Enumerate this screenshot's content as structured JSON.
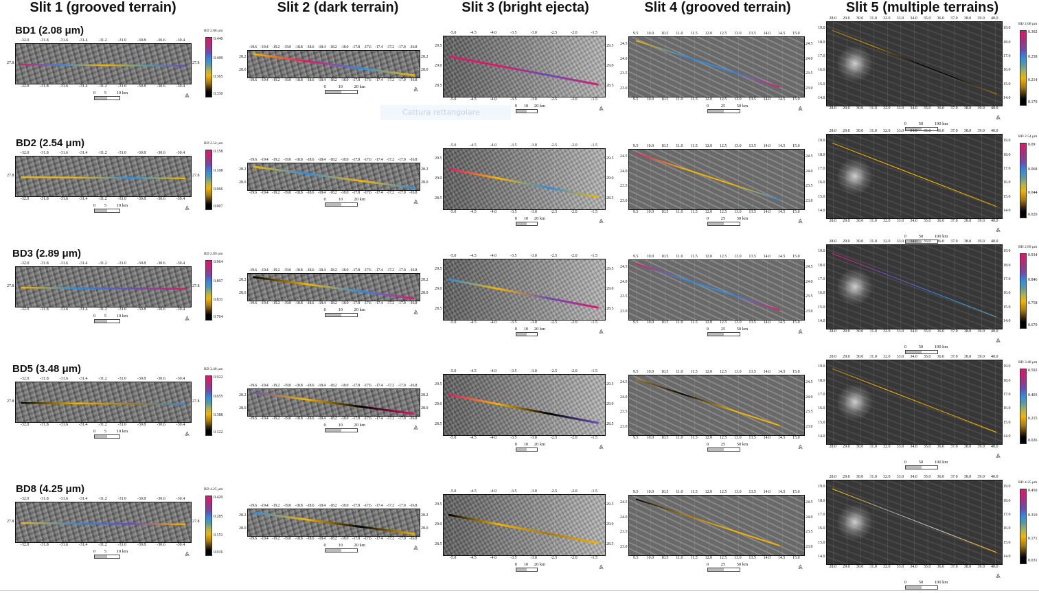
{
  "columns": [
    {
      "title": "Slit 1 (grooved terrain)",
      "x_ticks": [
        "-32.0",
        "-31.8",
        "-31.6",
        "-31.4",
        "-31.2",
        "-31.0",
        "-30.8",
        "-30.6",
        "-30.4"
      ],
      "y_ticks": [
        "27.8"
      ],
      "scale": [
        "0",
        "5",
        "10 km"
      ]
    },
    {
      "title": "Slit 2 (dark terrain)",
      "x_ticks": [
        "-19.6",
        "-19.4",
        "-19.2",
        "-19.0",
        "-18.8",
        "-18.6",
        "-18.4",
        "-18.2",
        "-18.0",
        "-17.8",
        "-17.6",
        "-17.4",
        "-17.2",
        "-17.0",
        "-16.8"
      ],
      "y_ticks": [
        "28.2",
        "28.0"
      ],
      "scale": [
        "0",
        "10",
        "20 km"
      ]
    },
    {
      "title": "Slit 3 (bright ejecta)",
      "x_ticks": [
        "-5.0",
        "-4.5",
        "-4.0",
        "-3.5",
        "-3.0",
        "-2.5",
        "-2.0",
        "-1.5"
      ],
      "y_ticks": [
        "29.5",
        "29.0",
        "28.5"
      ],
      "scale": [
        "0",
        "10",
        "20 km"
      ]
    },
    {
      "title": "Slit 4 (grooved terrain)",
      "x_ticks": [
        "9.5",
        "10.0",
        "10.5",
        "11.0",
        "11.5",
        "12.0",
        "12.5",
        "13.0",
        "13.5",
        "14.0",
        "14.5",
        "15.0"
      ],
      "y_ticks": [
        "24.5",
        "24.0",
        "23.5",
        "23.0"
      ],
      "scale": [
        "0",
        "25",
        "50 km"
      ]
    },
    {
      "title": "Slit 5 (multiple terrains)",
      "x_ticks": [
        "28.0",
        "29.0",
        "30.0",
        "31.0",
        "32.0",
        "33.0",
        "34.0",
        "35.0",
        "36.0",
        "37.0",
        "38.0",
        "39.0",
        "40.0"
      ],
      "y_ticks": [
        "19.0",
        "18.0",
        "17.0",
        "16.0",
        "15.0",
        "14.0"
      ],
      "scale": [
        "0",
        "50",
        "100 km"
      ]
    }
  ],
  "rows": [
    {
      "label": "BD1 (2.08 μm)",
      "colorbar_title": "BD 2.08 μm",
      "slit1_colorbar": [
        "0.440",
        "0.400",
        "0.365",
        "0.330"
      ],
      "slit5_colorbar": [
        "0.302",
        "0.258",
        "0.214",
        "0.170"
      ],
      "trace_colors": [
        [
          "#e0186c",
          "#2e8be0",
          "#f2b400",
          "#5c9a9c",
          "#6a4db5"
        ],
        [
          "#f2b400",
          "#e0186c",
          "#2e8be0",
          "#f2b400"
        ],
        [
          "#e0186c",
          "#e0186c",
          "#6a4db5",
          "#e0186c"
        ],
        [
          "#f2b400",
          "#2e8be0",
          "#2e8be0",
          "#e0186c"
        ],
        [
          "#a77a10",
          "#d09a00",
          "#000000",
          "#000000",
          "#a77a10"
        ]
      ]
    },
    {
      "label": "BD2 (2.54 μm)",
      "colorbar_title": "BD 2.54 μm",
      "slit1_colorbar": [
        "0.158",
        "0.108",
        "0.066",
        "0.007"
      ],
      "slit5_colorbar": [
        "0.09",
        "0.068",
        "0.044",
        "0.020"
      ],
      "trace_colors": [
        [
          "#f2b400",
          "#f2b400",
          "#2e8be0",
          "#f2b400"
        ],
        [
          "#f2b400",
          "#2e8be0",
          "#f2b400",
          "#2e8be0"
        ],
        [
          "#e0186c",
          "#f2b400",
          "#2e8be0",
          "#f2b400"
        ],
        [
          "#e0186c",
          "#f2b400",
          "#f2b400",
          "#2e8be0"
        ],
        [
          "#d09a00",
          "#f2b400",
          "#f2b400",
          "#d09a00"
        ]
      ]
    },
    {
      "label": "BD3 (2.89 μm)",
      "colorbar_title": "BD 2.89 μm",
      "slit1_colorbar": [
        "0.964",
        "0.897",
        "0.831",
        "0.764"
      ],
      "slit5_colorbar": [
        "0.934",
        "0.846",
        "0.758",
        "0.670"
      ],
      "trace_colors": [
        [
          "#f2b400",
          "#2e8be0",
          "#6a4db5",
          "#e0186c"
        ],
        [
          "#000000",
          "#f2b400",
          "#2e8be0",
          "#e0186c"
        ],
        [
          "#2e8be0",
          "#f2b400",
          "#6a4db5",
          "#e0186c"
        ],
        [
          "#e0186c",
          "#2e8be0",
          "#2e8be0",
          "#e0186c"
        ],
        [
          "#e0186c",
          "#6a4db5",
          "#2e8be0",
          "#5c9a9c"
        ]
      ]
    },
    {
      "label": "BD5 (3.48 μm)",
      "colorbar_title": "BD 3.48 μm",
      "slit1_colorbar": [
        "0.922",
        "0.655",
        "0.388",
        "0.122"
      ],
      "slit5_colorbar": [
        "0.592",
        "0.403",
        "0.215",
        "0.026"
      ],
      "trace_colors": [
        [
          "#000000",
          "#f2b400",
          "#a77a10",
          "#2e8be0"
        ],
        [
          "#6a4db5",
          "#f2b400",
          "#000000",
          "#e0186c"
        ],
        [
          "#e0186c",
          "#f2b400",
          "#000000",
          "#6a4db5"
        ],
        [
          "#a77a10",
          "#000000",
          "#f2b400",
          "#f2b400"
        ],
        [
          "#a77a10",
          "#f2b400",
          "#d09a00",
          "#f2b400"
        ]
      ]
    },
    {
      "label": "BD8 (4.25 μm)",
      "colorbar_title": "BD 4.25 μm",
      "slit1_colorbar": [
        "0.420",
        "0.285",
        "0.151",
        "0.016"
      ],
      "slit5_colorbar": [
        "0.450",
        "0.310",
        "0.171",
        "0.031"
      ],
      "trace_colors": [
        [
          "#f2b400",
          "#2e8be0",
          "#6a4db5",
          "#f2b400"
        ],
        [
          "#2e8be0",
          "#f2b400",
          "#000000",
          "#f2b400"
        ],
        [
          "#000000",
          "#f2b400",
          "#a77a10",
          "#f2b400"
        ],
        [
          "#000000",
          "#a77a10",
          "#f2b400",
          "#f2b400"
        ],
        [
          "#f2b400",
          "#9a9a9a",
          "#c0c0c0",
          "#f2b400"
        ]
      ]
    }
  ],
  "overlay_tooltip": "Cattura rettangolare",
  "north_arrow_glyph": "⩓"
}
